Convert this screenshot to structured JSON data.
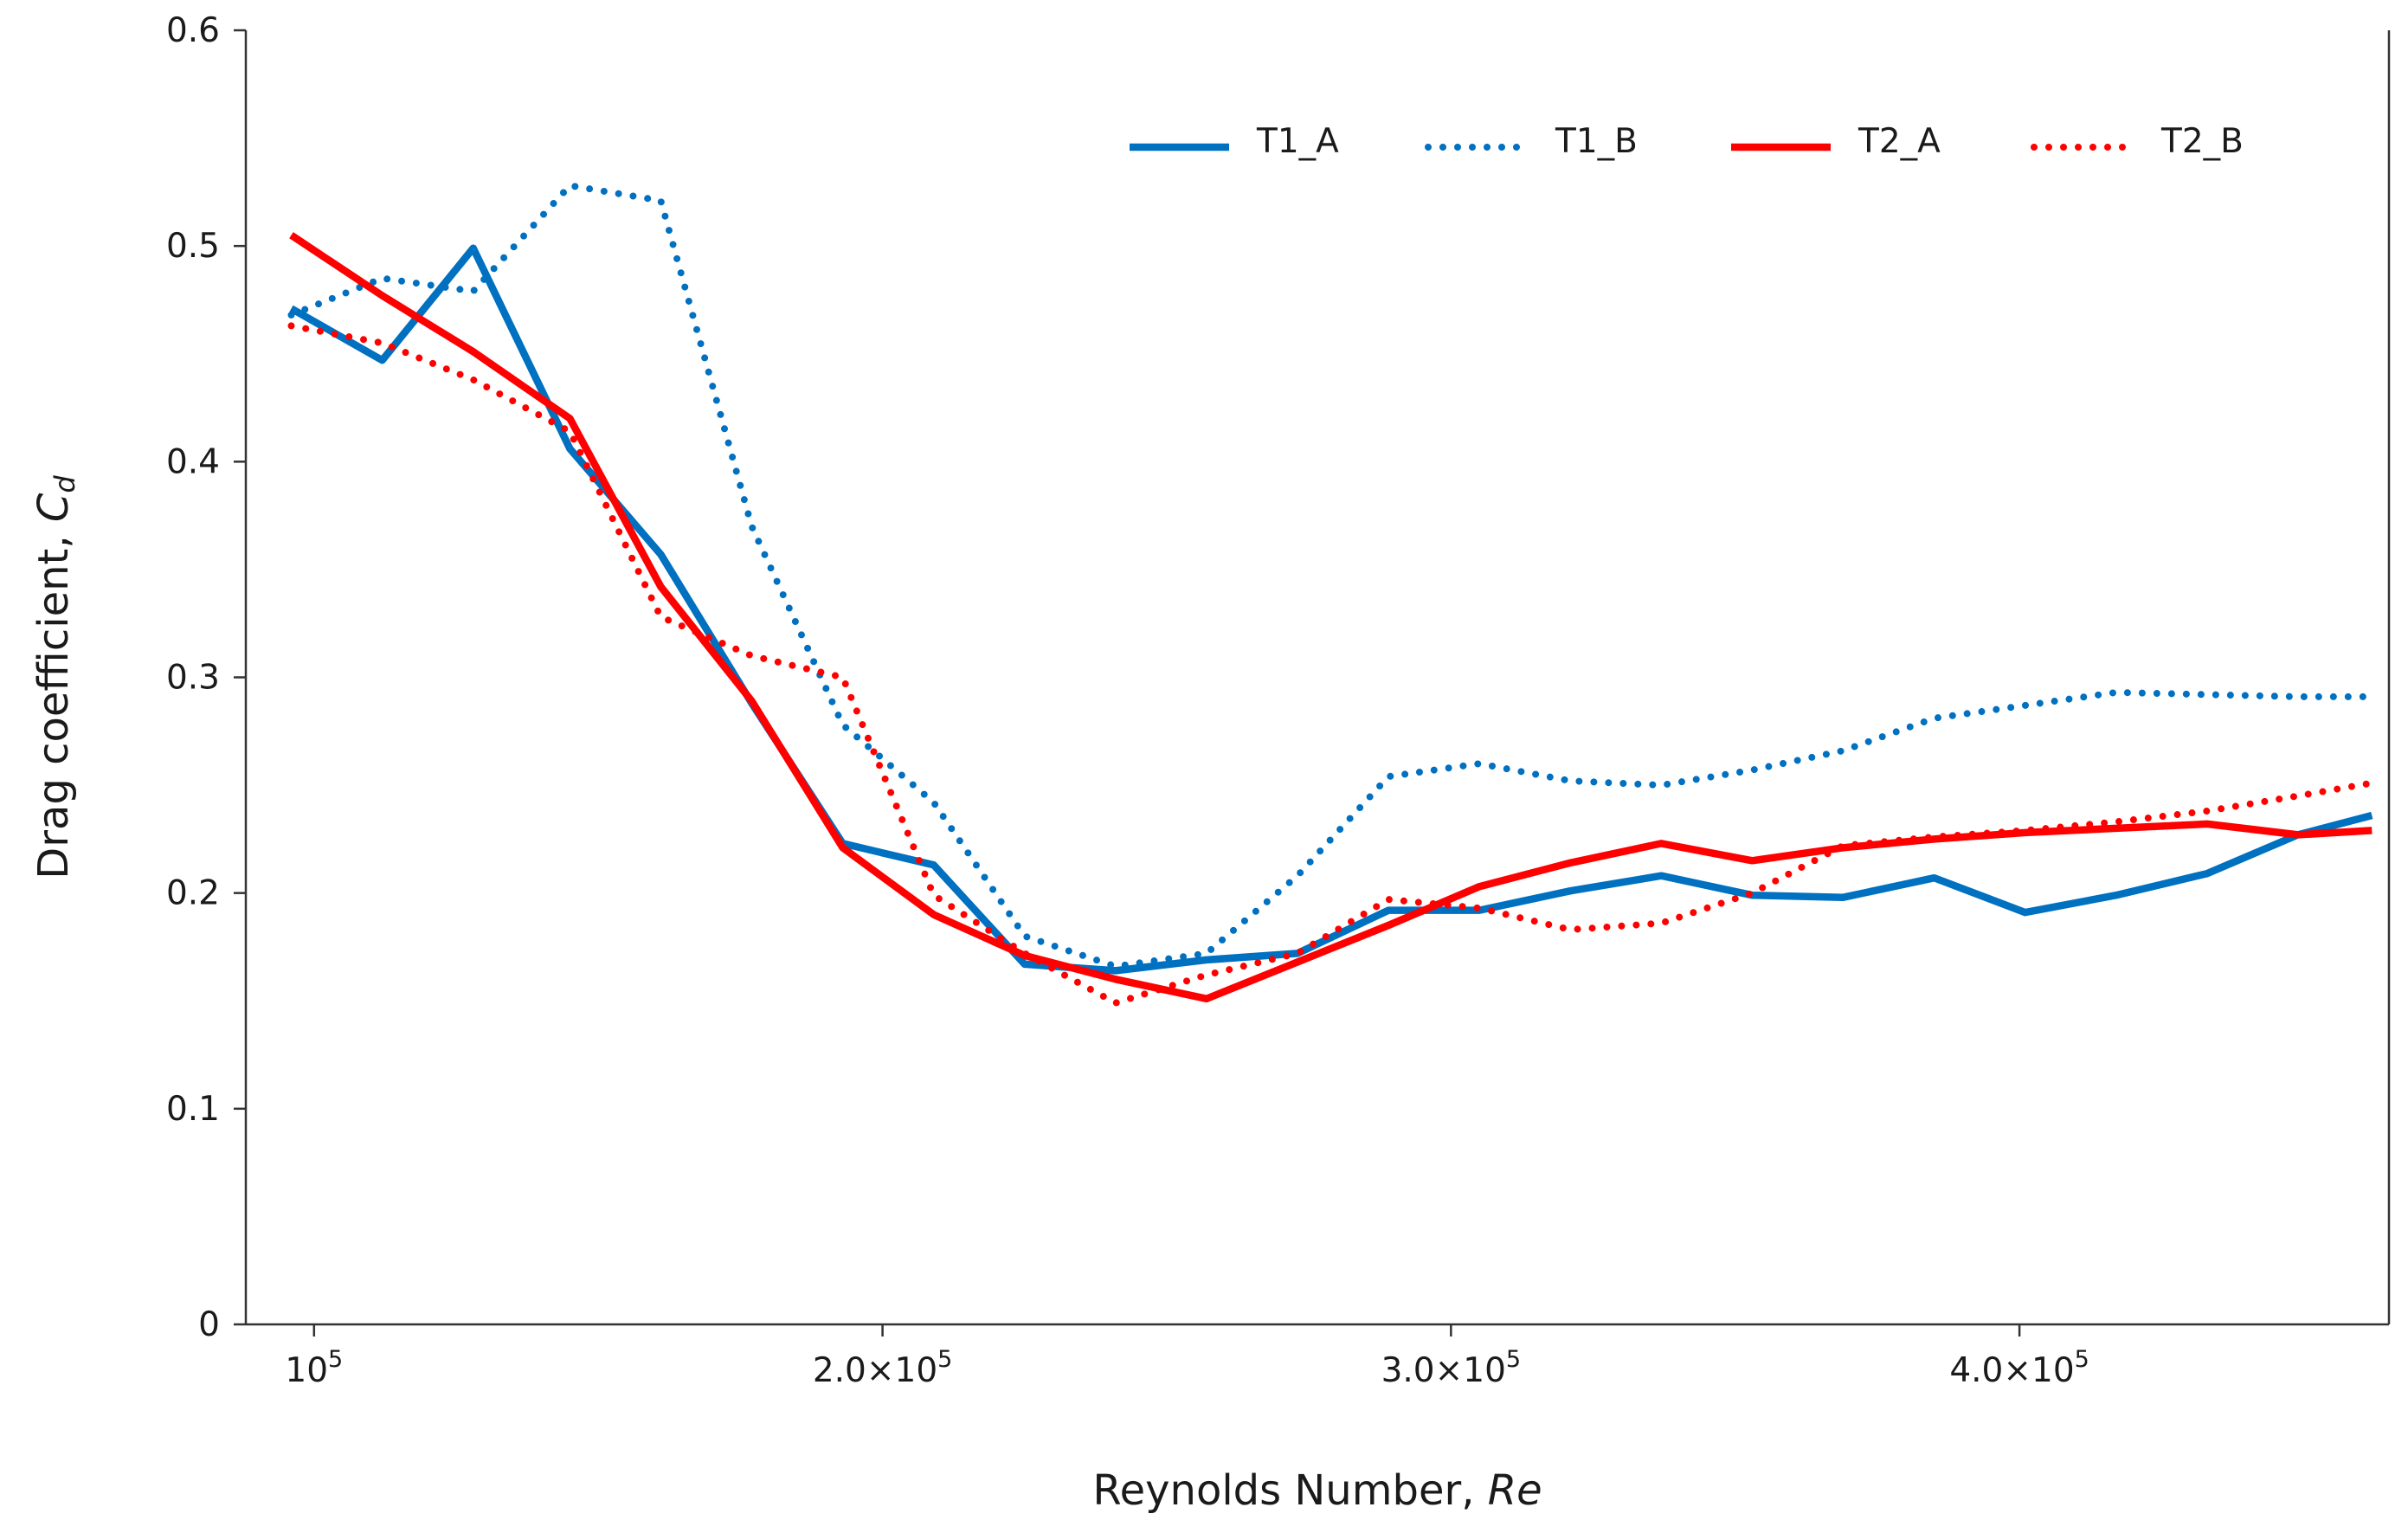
{
  "chart_data": {
    "type": "line",
    "title": "",
    "xlabel": "Reynolds Number, Re",
    "xlabel_main": "Reynolds Number, ",
    "xlabel_var": "Re",
    "ylabel": "Drag coefficient, Cd",
    "ylabel_main": "Drag coefficient, ",
    "ylabel_var": "C",
    "ylabel_sub": "d",
    "xlim": [
      88000,
      465000
    ],
    "ylim": [
      0,
      0.6
    ],
    "yticks": [
      {
        "value": 0,
        "label": "0"
      },
      {
        "value": 0.1,
        "label": "0.1"
      },
      {
        "value": 0.2,
        "label": "0.2"
      },
      {
        "value": 0.3,
        "label": "0.3"
      },
      {
        "value": 0.4,
        "label": "0.4"
      },
      {
        "value": 0.5,
        "label": "0.5"
      },
      {
        "value": 0.6,
        "label": "0.6"
      }
    ],
    "xticks": [
      {
        "value": 100000,
        "mantissa": "10",
        "exponent": "5"
      },
      {
        "value": 200000,
        "mantissa": "2.0×10",
        "exponent": "5"
      },
      {
        "value": 300000,
        "mantissa": "3.0×10",
        "exponent": "5"
      },
      {
        "value": 400000,
        "mantissa": "4.0×10",
        "exponent": "5"
      }
    ],
    "grid": false,
    "legend_position": "top-right",
    "series": [
      {
        "name": "T1_A",
        "color": "#0070C0",
        "style": "solid",
        "x": [
          96000,
          112000,
          128000,
          145000,
          161000,
          177000,
          193000,
          209000,
          225000,
          241000,
          257000,
          273000,
          289000,
          305000,
          321000,
          337000,
          353000,
          369000,
          385000,
          401000,
          417000,
          433000,
          449000,
          462000
        ],
        "y": [
          0.471,
          0.447,
          0.499,
          0.406,
          0.357,
          0.288,
          0.223,
          0.213,
          0.167,
          0.164,
          0.169,
          0.172,
          0.192,
          0.192,
          0.201,
          0.208,
          0.199,
          0.198,
          0.207,
          0.191,
          0.199,
          0.209,
          0.227,
          0.236
        ]
      },
      {
        "name": "T1_B",
        "color": "#0070C0",
        "style": "dotted",
        "x": [
          96000,
          112000,
          128000,
          145000,
          161000,
          177000,
          193000,
          209000,
          225000,
          241000,
          257000,
          273000,
          289000,
          305000,
          321000,
          337000,
          353000,
          369000,
          385000,
          401000,
          417000,
          433000,
          449000,
          462000
        ],
        "y": [
          0.468,
          0.485,
          0.479,
          0.528,
          0.521,
          0.37,
          0.278,
          0.242,
          0.18,
          0.166,
          0.172,
          0.208,
          0.254,
          0.26,
          0.252,
          0.25,
          0.257,
          0.266,
          0.281,
          0.287,
          0.293,
          0.292,
          0.291,
          0.291
        ]
      },
      {
        "name": "T2_A",
        "color": "#FF0000",
        "style": "solid",
        "x": [
          96000,
          112000,
          128000,
          145000,
          161000,
          177000,
          193000,
          209000,
          225000,
          241000,
          257000,
          273000,
          289000,
          305000,
          321000,
          337000,
          353000,
          369000,
          385000,
          401000,
          417000,
          433000,
          449000,
          462000
        ],
        "y": [
          0.505,
          0.477,
          0.451,
          0.42,
          0.342,
          0.289,
          0.221,
          0.19,
          0.171,
          0.16,
          0.151,
          0.168,
          0.185,
          0.203,
          0.214,
          0.223,
          0.215,
          0.221,
          0.225,
          0.228,
          0.23,
          0.232,
          0.227,
          0.229
        ]
      },
      {
        "name": "T2_B",
        "color": "#FF0000",
        "style": "dotted",
        "x": [
          96000,
          112000,
          128000,
          145000,
          161000,
          177000,
          193000,
          209000,
          225000,
          241000,
          257000,
          273000,
          289000,
          305000,
          321000,
          337000,
          353000,
          369000,
          385000,
          401000,
          417000,
          433000,
          449000,
          462000
        ],
        "y": [
          0.463,
          0.455,
          0.438,
          0.414,
          0.328,
          0.31,
          0.3,
          0.199,
          0.172,
          0.149,
          0.162,
          0.172,
          0.197,
          0.193,
          0.183,
          0.186,
          0.2,
          0.222,
          0.226,
          0.229,
          0.233,
          0.238,
          0.245,
          0.251
        ]
      }
    ]
  }
}
